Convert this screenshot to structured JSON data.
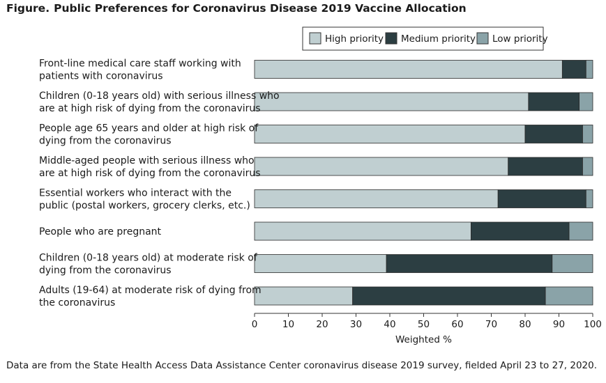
{
  "figure_label": "Figure.",
  "title": "Public Preferences for Coronavirus Disease 2019 Vaccine Allocation",
  "footnote": "Data are from the State Health Access Data Assistance Center coronavirus disease 2019 survey, fielded April 23 to 27, 2020.",
  "colors": {
    "high": "#c0cfd1",
    "medium": "#2c3e42",
    "low": "#8aa3a8"
  },
  "chart_data": {
    "type": "bar",
    "orientation": "horizontal",
    "stacked": true,
    "xlabel": "Weighted %",
    "xlim": [
      0,
      100
    ],
    "xticks": [
      0,
      10,
      20,
      30,
      40,
      50,
      60,
      70,
      80,
      90,
      100
    ],
    "legend_position": "top-right",
    "categories": [
      [
        "Front-line medical care staff working with",
        "patients with coronavirus"
      ],
      [
        "Children (0-18 years old) with serious illness who",
        "are at high risk of dying from the coronavirus"
      ],
      [
        "People age 65 years and older at high risk of",
        "dying from the coronavirus"
      ],
      [
        "Middle-aged people with serious illness who",
        "are at high risk of dying from the coronavirus"
      ],
      [
        "Essential workers who interact with the",
        "public (postal workers, grocery clerks, etc.)"
      ],
      [
        "People who are pregnant"
      ],
      [
        "Children (0-18 years old) at moderate risk of",
        "dying from the coronavirus"
      ],
      [
        "Adults (19-64) at moderate risk of dying from",
        "the coronavirus"
      ]
    ],
    "series": [
      {
        "name": "High priority",
        "key": "high",
        "values": [
          91,
          81,
          80,
          75,
          72,
          64,
          39,
          29
        ]
      },
      {
        "name": "Medium priority",
        "key": "medium",
        "values": [
          7,
          15,
          17,
          22,
          26,
          29,
          49,
          57
        ]
      },
      {
        "name": "Low priority",
        "key": "low",
        "values": [
          2,
          4,
          3,
          3,
          2,
          7,
          12,
          14
        ]
      }
    ]
  }
}
